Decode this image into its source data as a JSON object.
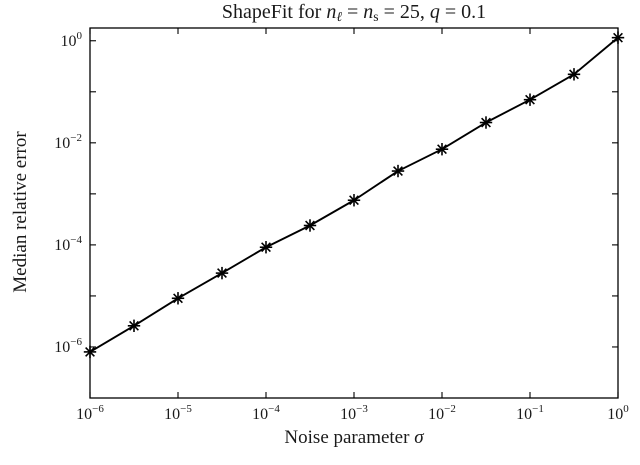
{
  "background": "#ffffff",
  "chart_data": {
    "type": "line",
    "title": "ShapeFit for n_l = n_s = 25, q = 0.1",
    "title_parts": [
      {
        "t": "ShapeFit for ",
        "s": "n"
      },
      {
        "t": "n",
        "s": "i"
      },
      {
        "t": "ℓ",
        "s": "subi"
      },
      {
        "t": " = ",
        "s": "n"
      },
      {
        "t": "n",
        "s": "i"
      },
      {
        "t": "s",
        "s": "sub"
      },
      {
        "t": " = 25, ",
        "s": "n"
      },
      {
        "t": "q",
        "s": "i"
      },
      {
        "t": " = 0.1",
        "s": "n"
      }
    ],
    "xlabel": "Noise parameter sigma",
    "xlabel_parts": [
      {
        "t": "Noise parameter ",
        "s": "n"
      },
      {
        "t": "σ",
        "s": "i"
      }
    ],
    "ylabel": "Median relative error",
    "x_scale": "log",
    "y_scale": "log",
    "x": [
      1e-06,
      3.162e-06,
      1e-05,
      3.162e-05,
      0.0001,
      0.0003162,
      0.001,
      0.003162,
      0.01,
      0.03162,
      0.1,
      0.3162,
      1
    ],
    "y": [
      8e-07,
      2.6e-06,
      9e-06,
      2.8e-05,
      9e-05,
      0.00024,
      0.00075,
      0.0028,
      0.0075,
      0.025,
      0.07,
      0.22,
      1.15
    ],
    "x_tick_exponents": [
      -6,
      -5,
      -4,
      -3,
      -2,
      -1,
      0
    ],
    "y_tick_exponents": [
      -6,
      -4,
      -2,
      0
    ],
    "y_minor_decade_exponents": [
      -6,
      -5,
      -4,
      -3,
      -2,
      -1,
      0
    ],
    "xlog_range": [
      -6,
      0
    ],
    "ylog_range": [
      -7,
      0.25
    ],
    "grid": false,
    "legend": null,
    "line_color": "#000000",
    "marker": "asterisk",
    "marker_color": "#000000"
  }
}
